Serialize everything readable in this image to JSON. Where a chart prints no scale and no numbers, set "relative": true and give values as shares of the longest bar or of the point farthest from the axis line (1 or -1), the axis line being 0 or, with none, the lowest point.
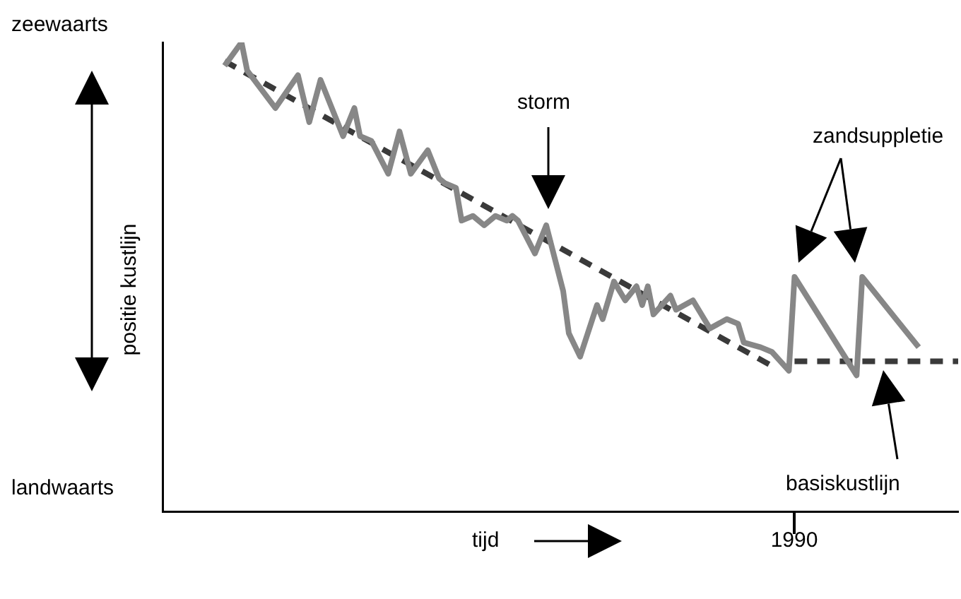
{
  "chart_data": {
    "type": "line",
    "relative": true,
    "xlabel": "tijd",
    "ylabel": "positie kustlijn",
    "legend": false,
    "grid": false,
    "marker": "none",
    "annotations": [
      "zeewaarts",
      "landwaarts",
      "storm",
      "zandsuppletie",
      "basiskustlijn",
      "1990"
    ],
    "categories": [
      null,
      null,
      null,
      null,
      null,
      null,
      null,
      null,
      null,
      null,
      null,
      null,
      null,
      null,
      null,
      null,
      null,
      null,
      null,
      null,
      null,
      null,
      null,
      null,
      null,
      null,
      null,
      null,
      null,
      null,
      null,
      null,
      null,
      null,
      null,
      null,
      null,
      null,
      null,
      null,
      null,
      null,
      null,
      null,
      null,
      null,
      null,
      null,
      null,
      null,
      null,
      null,
      null,
      null,
      null,
      null,
      null,
      null,
      null,
      null,
      null,
      null,
      null,
      null,
      null,
      null,
      null,
      null,
      null,
      null,
      null,
      null,
      null,
      null,
      null,
      null,
      null,
      null,
      null,
      null,
      null,
      null,
      null,
      null,
      null,
      null,
      null,
      null,
      null,
      null,
      null,
      null,
      null,
      null,
      null,
      null,
      null,
      null,
      null,
      null,
      null,
      null,
      null,
      null,
      null,
      null,
      null,
      null,
      null,
      null,
      null,
      null,
      null,
      null,
      null,
      null,
      null,
      null,
      null,
      null,
      null,
      null,
      null,
      null,
      null,
      null,
      null,
      null,
      null,
      null,
      null,
      null,
      null,
      null,
      null,
      null,
      null,
      null,
      null,
      null,
      null,
      null
    ],
    "series": [
      {
        "color": "#878787",
        "line_style": "solid",
        "values": [
          null,
          null,
          null,
          null,
          null,
          null,
          null,
          null,
          null,
          null,
          null,
          0.95,
          null,
          null,
          1,
          0.94,
          null,
          null,
          null,
          null,
          0.86,
          null,
          null,
          null,
          0.93,
          null,
          0.83,
          null,
          0.92,
          null,
          null,
          null,
          0.8,
          null,
          0.86,
          0.8,
          null,
          0.79,
          null,
          null,
          0.72,
          null,
          0.81,
          null,
          0.72,
          null,
          null,
          0.77,
          null,
          0.71,
          0.7,
          null,
          0.69,
          0.62,
          null,
          0.63,
          null,
          0.61,
          null,
          0.63,
          null,
          0.62,
          0.63,
          0.62,
          null,
          null,
          0.55,
          null,
          0.61,
          null,
          null,
          0.47,
          0.38,
          null,
          0.33,
          null,
          null,
          0.44,
          0.41,
          null,
          0.49,
          null,
          0.45,
          null,
          0.48,
          0.44,
          0.48,
          0.42,
          null,
          null,
          0.46,
          0.43,
          null,
          null,
          0.45,
          null,
          null,
          0.39,
          null,
          null,
          0.41,
          null,
          0.4,
          0.36,
          null,
          null,
          0.35,
          null,
          0.34,
          null,
          null,
          0.3,
          0.5,
          null,
          null,
          null,
          null,
          null,
          null,
          null,
          null,
          null,
          null,
          0.29,
          0.5,
          null,
          null,
          null,
          null,
          null,
          null,
          null,
          null,
          null,
          0.35,
          null,
          null,
          null,
          null,
          null,
          null,
          null
        ]
      },
      {
        "color": "#3a3a3a",
        "line_style": "dashed",
        "values": [
          null,
          null,
          null,
          null,
          null,
          null,
          null,
          null,
          null,
          null,
          null,
          0.96,
          null,
          null,
          null,
          null,
          null,
          null,
          null,
          null,
          null,
          null,
          null,
          null,
          null,
          null,
          null,
          null,
          null,
          null,
          null,
          null,
          null,
          null,
          null,
          null,
          null,
          null,
          null,
          null,
          null,
          null,
          null,
          null,
          null,
          null,
          null,
          null,
          null,
          null,
          null,
          null,
          null,
          null,
          null,
          null,
          null,
          null,
          null,
          null,
          null,
          null,
          null,
          null,
          null,
          null,
          null,
          null,
          null,
          null,
          null,
          null,
          null,
          null,
          null,
          null,
          null,
          null,
          null,
          null,
          null,
          null,
          null,
          null,
          null,
          null,
          null,
          null,
          null,
          null,
          null,
          null,
          null,
          null,
          null,
          null,
          null,
          null,
          null,
          null,
          null,
          null,
          null,
          null,
          null,
          null,
          null,
          null,
          0.31,
          null,
          null,
          null,
          null,
          null,
          null,
          null,
          null,
          null,
          null,
          null,
          null,
          null,
          null,
          null,
          null,
          null,
          null,
          null,
          null,
          null,
          null,
          null,
          null,
          null,
          null,
          null,
          null,
          null,
          null,
          null,
          null,
          null
        ]
      },
      {
        "color": "#3a3a3a",
        "line_style": "dashed",
        "values": [
          null,
          null,
          null,
          null,
          null,
          null,
          null,
          null,
          null,
          null,
          null,
          null,
          null,
          null,
          null,
          null,
          null,
          null,
          null,
          null,
          null,
          null,
          null,
          null,
          null,
          null,
          null,
          null,
          null,
          null,
          null,
          null,
          null,
          null,
          null,
          null,
          null,
          null,
          null,
          null,
          null,
          null,
          null,
          null,
          null,
          null,
          null,
          null,
          null,
          null,
          null,
          null,
          null,
          null,
          null,
          null,
          null,
          null,
          null,
          null,
          null,
          null,
          null,
          null,
          null,
          null,
          null,
          null,
          null,
          null,
          null,
          null,
          null,
          null,
          null,
          null,
          null,
          null,
          null,
          null,
          null,
          null,
          null,
          null,
          null,
          null,
          null,
          null,
          null,
          null,
          null,
          null,
          null,
          null,
          null,
          null,
          null,
          null,
          null,
          null,
          null,
          null,
          null,
          null,
          null,
          null,
          null,
          null,
          null,
          null,
          null,
          null,
          0.32,
          null,
          null,
          null,
          null,
          null,
          null,
          null,
          null,
          null,
          null,
          null,
          null,
          null,
          null,
          null,
          null,
          null,
          null,
          null,
          null,
          null,
          null,
          null,
          null,
          null,
          null,
          null,
          null,
          0.32
        ]
      }
    ]
  }
}
